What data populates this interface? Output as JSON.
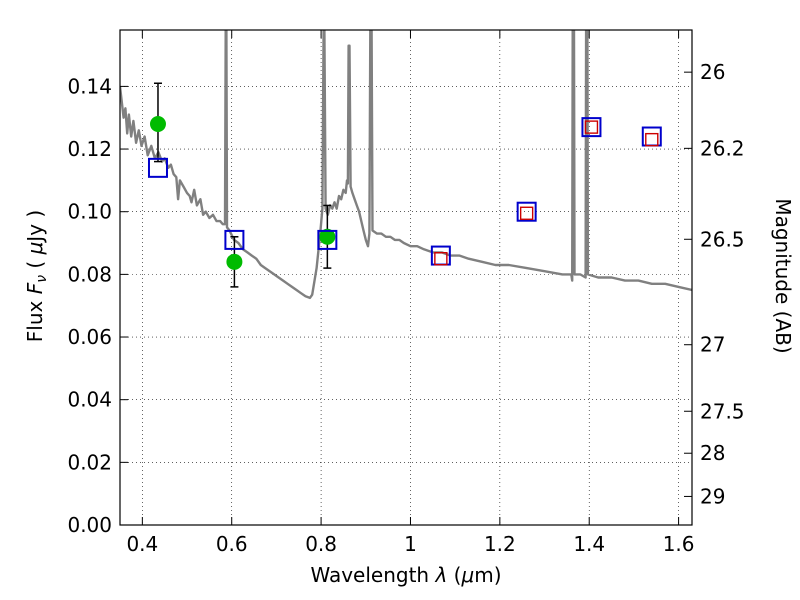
{
  "chart_data": {
    "type": "scatter",
    "xlabel": "Wavelength  λ (μm)",
    "ylabel": "Flux  Fν  ( μJy )",
    "y2label": "Magnitude (AB)",
    "xlim": [
      0.35,
      1.63
    ],
    "ylim": [
      0.0,
      0.158
    ],
    "grid": true,
    "x_ticks": [
      {
        "value": 0.4,
        "label": "0.4"
      },
      {
        "value": 0.6,
        "label": "0.6"
      },
      {
        "value": 0.8,
        "label": "0.8"
      },
      {
        "value": 1.0,
        "label": "1"
      },
      {
        "value": 1.2,
        "label": "1.2"
      },
      {
        "value": 1.4,
        "label": "1.4"
      },
      {
        "value": 1.6,
        "label": "1.6"
      }
    ],
    "y_ticks": [
      {
        "value": 0.0,
        "label": "0.00"
      },
      {
        "value": 0.02,
        "label": "0.02"
      },
      {
        "value": 0.04,
        "label": "0.04"
      },
      {
        "value": 0.06,
        "label": "0.06"
      },
      {
        "value": 0.08,
        "label": "0.08"
      },
      {
        "value": 0.1,
        "label": "0.10"
      },
      {
        "value": 0.12,
        "label": "0.12"
      },
      {
        "value": 0.14,
        "label": "0.14"
      }
    ],
    "mag_ticks": [
      {
        "mag": 26.0,
        "label": "26"
      },
      {
        "mag": 26.2,
        "label": "26.2"
      },
      {
        "mag": 26.5,
        "label": "26.5"
      },
      {
        "mag": 27.0,
        "label": "27"
      },
      {
        "mag": 27.5,
        "label": "27.5"
      },
      {
        "mag": 28.0,
        "label": "28"
      },
      {
        "mag": 29.0,
        "label": "29"
      }
    ],
    "series": [
      {
        "name": "model_spectrum",
        "kind": "line",
        "color": "#808080",
        "points": [
          [
            0.35,
            0.14
          ],
          [
            0.358,
            0.13
          ],
          [
            0.362,
            0.133
          ],
          [
            0.366,
            0.125
          ],
          [
            0.37,
            0.131
          ],
          [
            0.375,
            0.124
          ],
          [
            0.38,
            0.129
          ],
          [
            0.386,
            0.122
          ],
          [
            0.392,
            0.126
          ],
          [
            0.398,
            0.121
          ],
          [
            0.405,
            0.124
          ],
          [
            0.412,
            0.118
          ],
          [
            0.42,
            0.121
          ],
          [
            0.428,
            0.117
          ],
          [
            0.436,
            0.119
          ],
          [
            0.444,
            0.116
          ],
          [
            0.45,
            0.117
          ],
          [
            0.458,
            0.114
          ],
          [
            0.464,
            0.115
          ],
          [
            0.47,
            0.112
          ],
          [
            0.476,
            0.111
          ],
          [
            0.48,
            0.104
          ],
          [
            0.484,
            0.11
          ],
          [
            0.492,
            0.108
          ],
          [
            0.5,
            0.106
          ],
          [
            0.506,
            0.105
          ],
          [
            0.51,
            0.103
          ],
          [
            0.516,
            0.107
          ],
          [
            0.522,
            0.102
          ],
          [
            0.53,
            0.104
          ],
          [
            0.536,
            0.099
          ],
          [
            0.542,
            0.1
          ],
          [
            0.55,
            0.098
          ],
          [
            0.558,
            0.099
          ],
          [
            0.566,
            0.097
          ],
          [
            0.574,
            0.097
          ],
          [
            0.58,
            0.096
          ],
          [
            0.585,
            0.096
          ],
          [
            0.5865,
            0.158
          ],
          [
            0.588,
            0.158
          ],
          [
            0.5895,
            0.095
          ],
          [
            0.595,
            0.094
          ],
          [
            0.605,
            0.091
          ],
          [
            0.615,
            0.09
          ],
          [
            0.625,
            0.088
          ],
          [
            0.635,
            0.087
          ],
          [
            0.645,
            0.086
          ],
          [
            0.655,
            0.085
          ],
          [
            0.665,
            0.083
          ],
          [
            0.675,
            0.082
          ],
          [
            0.685,
            0.081
          ],
          [
            0.695,
            0.08
          ],
          [
            0.705,
            0.079
          ],
          [
            0.715,
            0.078
          ],
          [
            0.725,
            0.077
          ],
          [
            0.735,
            0.076
          ],
          [
            0.745,
            0.075
          ],
          [
            0.755,
            0.074
          ],
          [
            0.765,
            0.073
          ],
          [
            0.775,
            0.0725
          ],
          [
            0.78,
            0.0735
          ],
          [
            0.79,
            0.082
          ],
          [
            0.798,
            0.093
          ],
          [
            0.803,
            0.101
          ],
          [
            0.8055,
            0.158
          ],
          [
            0.8075,
            0.158
          ],
          [
            0.81,
            0.101
          ],
          [
            0.815,
            0.099
          ],
          [
            0.82,
            0.102
          ],
          [
            0.825,
            0.101
          ],
          [
            0.83,
            0.103
          ],
          [
            0.835,
            0.101
          ],
          [
            0.84,
            0.105
          ],
          [
            0.845,
            0.104
          ],
          [
            0.85,
            0.107
          ],
          [
            0.855,
            0.106
          ],
          [
            0.858,
            0.11
          ],
          [
            0.86,
            0.109
          ],
          [
            0.8615,
            0.153
          ],
          [
            0.8635,
            0.153
          ],
          [
            0.866,
            0.108
          ],
          [
            0.87,
            0.106
          ],
          [
            0.875,
            0.104
          ],
          [
            0.88,
            0.102
          ],
          [
            0.885,
            0.1
          ],
          [
            0.89,
            0.097
          ],
          [
            0.895,
            0.094
          ],
          [
            0.9,
            0.091
          ],
          [
            0.905,
            0.089
          ],
          [
            0.908,
            0.093
          ],
          [
            0.91,
            0.158
          ],
          [
            0.913,
            0.158
          ],
          [
            0.915,
            0.094
          ],
          [
            0.925,
            0.093
          ],
          [
            0.935,
            0.093
          ],
          [
            0.945,
            0.092
          ],
          [
            0.955,
            0.092
          ],
          [
            0.965,
            0.091
          ],
          [
            0.975,
            0.091
          ],
          [
            0.985,
            0.09
          ],
          [
            1.0,
            0.089
          ],
          [
            1.015,
            0.089
          ],
          [
            1.03,
            0.088
          ],
          [
            1.05,
            0.087
          ],
          [
            1.07,
            0.087
          ],
          [
            1.09,
            0.086
          ],
          [
            1.11,
            0.086
          ],
          [
            1.13,
            0.085
          ],
          [
            1.16,
            0.084
          ],
          [
            1.19,
            0.083
          ],
          [
            1.22,
            0.083
          ],
          [
            1.26,
            0.082
          ],
          [
            1.3,
            0.081
          ],
          [
            1.34,
            0.08
          ],
          [
            1.36,
            0.08
          ],
          [
            1.362,
            0.078
          ],
          [
            1.363,
            0.158
          ],
          [
            1.366,
            0.158
          ],
          [
            1.367,
            0.08
          ],
          [
            1.38,
            0.08
          ],
          [
            1.392,
            0.079
          ],
          [
            1.393,
            0.158
          ],
          [
            1.396,
            0.158
          ],
          [
            1.397,
            0.08
          ],
          [
            1.42,
            0.079
          ],
          [
            1.45,
            0.079
          ],
          [
            1.48,
            0.078
          ],
          [
            1.51,
            0.078
          ],
          [
            1.54,
            0.077
          ],
          [
            1.57,
            0.077
          ],
          [
            1.6,
            0.076
          ],
          [
            1.63,
            0.075
          ]
        ]
      },
      {
        "name": "observed_photometry",
        "kind": "points_with_errorbars",
        "color": "#00bb00",
        "points": [
          {
            "x": 0.435,
            "y": 0.128,
            "yerr_low": 0.012,
            "yerr_high": 0.013
          },
          {
            "x": 0.606,
            "y": 0.084,
            "yerr_low": 0.008,
            "yerr_high": 0.008
          },
          {
            "x": 0.814,
            "y": 0.092,
            "yerr_low": 0.01,
            "yerr_high": 0.01
          }
        ]
      },
      {
        "name": "model_photometry",
        "kind": "open_squares",
        "color": "#0000cc",
        "points": [
          {
            "x": 0.435,
            "y": 0.114
          },
          {
            "x": 0.606,
            "y": 0.091
          },
          {
            "x": 0.814,
            "y": 0.091
          },
          {
            "x": 1.068,
            "y": 0.086
          },
          {
            "x": 1.26,
            "y": 0.1
          },
          {
            "x": 1.405,
            "y": 0.127
          },
          {
            "x": 1.54,
            "y": 0.124
          }
        ]
      },
      {
        "name": "model_photometry_inner",
        "kind": "open_squares_small",
        "color": "#cc0000",
        "points": [
          {
            "x": 1.068,
            "y": 0.085
          },
          {
            "x": 1.26,
            "y": 0.0995
          },
          {
            "x": 1.405,
            "y": 0.127
          },
          {
            "x": 1.54,
            "y": 0.123
          }
        ]
      }
    ]
  }
}
